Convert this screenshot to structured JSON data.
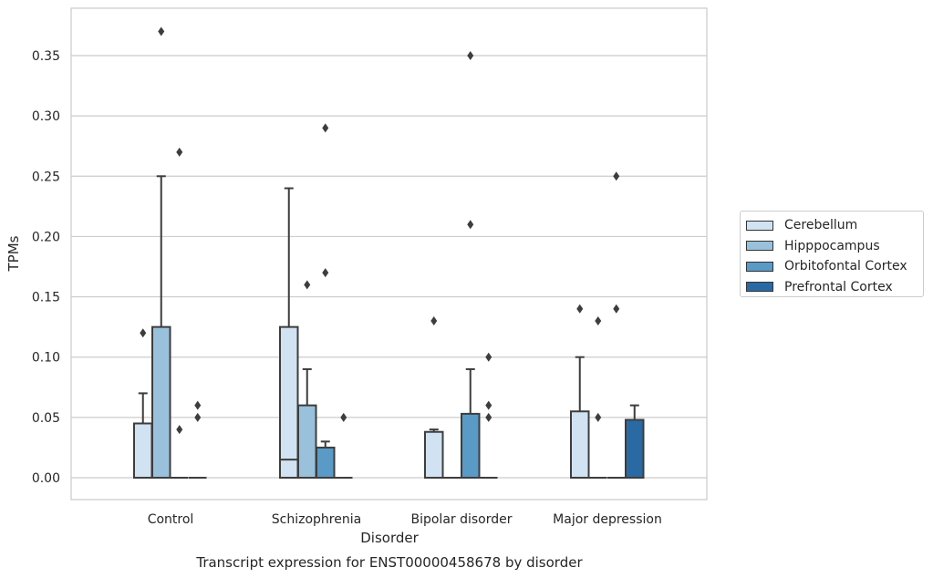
{
  "chart_data": {
    "type": "box",
    "title": "Transcript expression for ENST00000458678 by disorder",
    "xlabel": "Disorder",
    "ylabel": "TPMs",
    "ylim": [
      -0.018,
      0.388
    ],
    "yticks": [
      "0.00",
      "0.05",
      "0.10",
      "0.15",
      "0.20",
      "0.25",
      "0.30",
      "0.35"
    ],
    "ytick_values": [
      0,
      0.05,
      0.1,
      0.15,
      0.2,
      0.25,
      0.3,
      0.35
    ],
    "grid": "horizontal",
    "legend_position": "right",
    "categories": [
      "Control",
      "Schizophrenia",
      "Bipolar disorder",
      "Major depression"
    ],
    "series": [
      {
        "name": "Cerebellum",
        "color": "#d1e2f2",
        "boxes": [
          {
            "q1": 0,
            "median": 0,
            "q3": 0.045,
            "whisker_low": 0,
            "whisker_high": 0.07,
            "outliers": [
              0.12
            ]
          },
          {
            "q1": 0,
            "median": 0.015,
            "q3": 0.125,
            "whisker_low": 0,
            "whisker_high": 0.24,
            "outliers": []
          },
          {
            "q1": 0,
            "median": 0,
            "q3": 0.038,
            "whisker_low": 0,
            "whisker_high": 0.04,
            "outliers": [
              0.13
            ]
          },
          {
            "q1": 0,
            "median": 0,
            "q3": 0.055,
            "whisker_low": 0,
            "whisker_high": 0.1,
            "outliers": [
              0.14
            ]
          }
        ]
      },
      {
        "name": "Hipppocampus",
        "color": "#9ac1db",
        "boxes": [
          {
            "q1": 0,
            "median": 0,
            "q3": 0.125,
            "whisker_low": 0,
            "whisker_high": 0.25,
            "outliers": [
              0.37
            ]
          },
          {
            "q1": 0,
            "median": 0,
            "q3": 0.06,
            "whisker_low": 0,
            "whisker_high": 0.09,
            "outliers": [
              0.16
            ]
          },
          {
            "q1": 0,
            "median": 0,
            "q3": 0,
            "whisker_low": 0,
            "whisker_high": 0,
            "outliers": []
          },
          {
            "q1": 0,
            "median": 0,
            "q3": 0,
            "whisker_low": 0,
            "whisker_high": 0,
            "outliers": [
              0.13,
              0.05
            ]
          }
        ]
      },
      {
        "name": "Orbitofontal Cortex",
        "color": "#5a9ac6",
        "boxes": [
          {
            "q1": 0,
            "median": 0,
            "q3": 0,
            "whisker_low": 0,
            "whisker_high": 0,
            "outliers": [
              0.27,
              0.04
            ]
          },
          {
            "q1": 0,
            "median": 0,
            "q3": 0.025,
            "whisker_low": 0,
            "whisker_high": 0.03,
            "outliers": [
              0.29,
              0.17
            ]
          },
          {
            "q1": 0,
            "median": 0,
            "q3": 0.053,
            "whisker_low": 0,
            "whisker_high": 0.09,
            "outliers": [
              0.35,
              0.21
            ]
          },
          {
            "q1": 0,
            "median": 0,
            "q3": 0,
            "whisker_low": 0,
            "whisker_high": 0,
            "outliers": [
              0.25,
              0.14
            ]
          }
        ]
      },
      {
        "name": "Prefrontal Cortex",
        "color": "#2a6aa4",
        "boxes": [
          {
            "q1": 0,
            "median": 0,
            "q3": 0,
            "whisker_low": 0,
            "whisker_high": 0,
            "outliers": [
              0.06,
              0.05
            ]
          },
          {
            "q1": 0,
            "median": 0,
            "q3": 0,
            "whisker_low": 0,
            "whisker_high": 0,
            "outliers": [
              0.05
            ]
          },
          {
            "q1": 0,
            "median": 0,
            "q3": 0,
            "whisker_low": 0,
            "whisker_high": 0,
            "outliers": [
              0.1,
              0.06,
              0.05
            ]
          },
          {
            "q1": 0,
            "median": 0,
            "q3": 0.048,
            "whisker_low": 0,
            "whisker_high": 0.06,
            "outliers": []
          }
        ]
      }
    ]
  }
}
